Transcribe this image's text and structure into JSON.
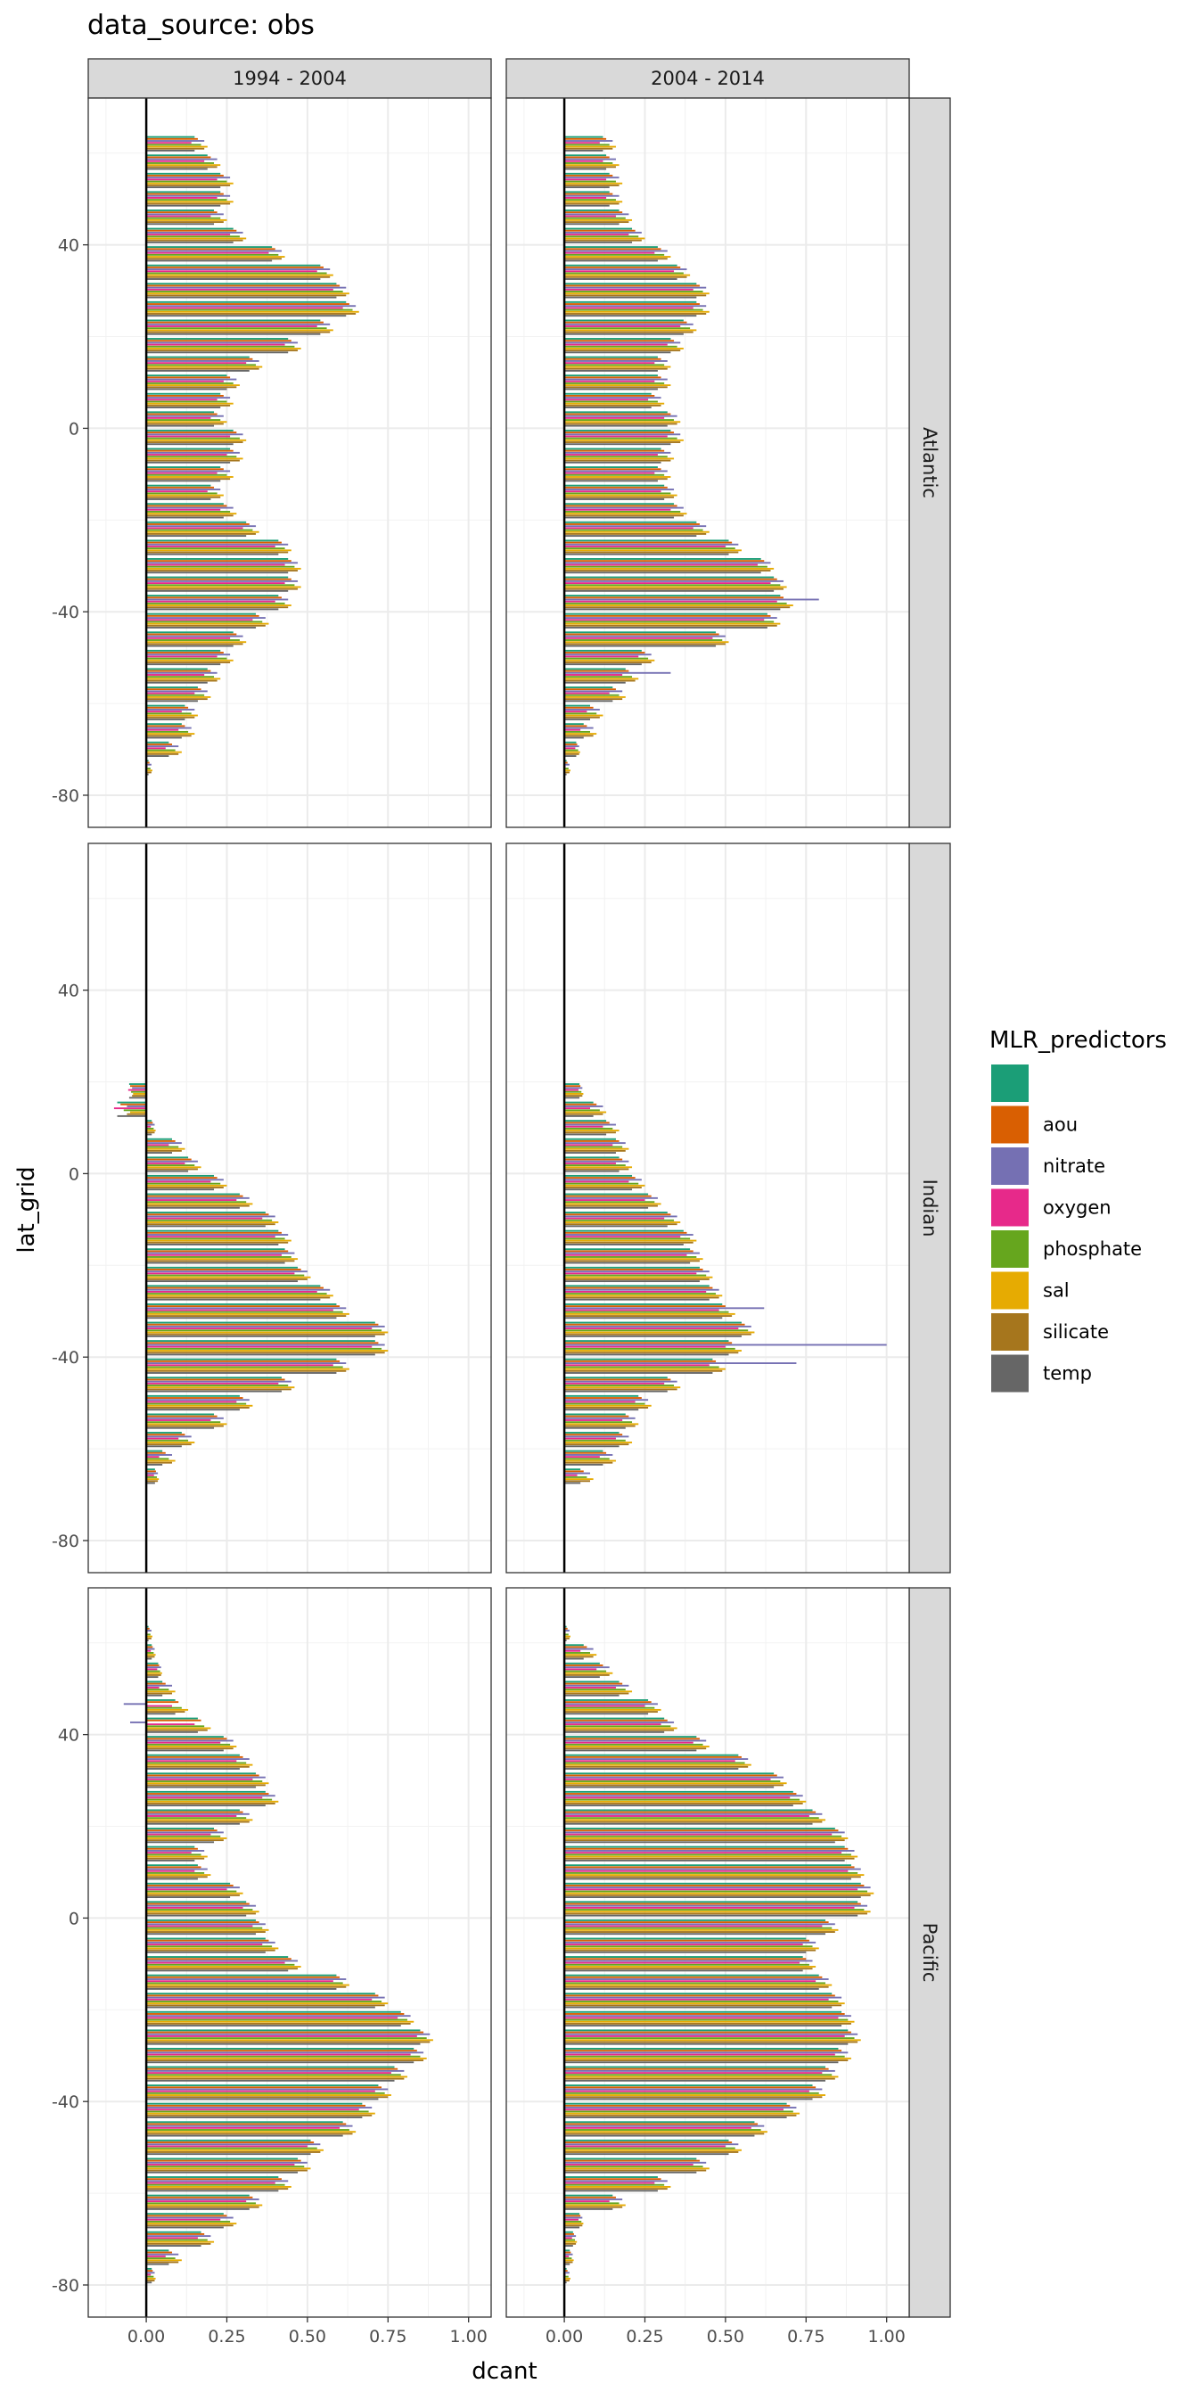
{
  "chart_data": {
    "type": "bar",
    "orientation": "horizontal",
    "title": "data_source: obs",
    "xlabel": "dcant",
    "ylabel": "lat_grid",
    "xlim": [
      -0.18,
      1.07
    ],
    "ylim": [
      -87,
      72
    ],
    "x_ticks": [
      0,
      0.25,
      0.5,
      0.75,
      1
    ],
    "x_tick_labels": [
      "0.00",
      "0.25",
      "0.50",
      "0.75",
      "1.00"
    ],
    "y_ticks": [
      -80,
      -40,
      0,
      40
    ],
    "y_tick_labels": [
      "-80",
      "-40",
      "0",
      "40"
    ],
    "grid": true,
    "legend_position": "right",
    "facet_cols": [
      "1994 - 2004",
      "2004 - 2014"
    ],
    "facet_rows": [
      "Atlantic",
      "Indian",
      "Pacific"
    ],
    "legend": {
      "title": "MLR_predictors",
      "items": [
        {
          "label": "",
          "color": "#1B9E77"
        },
        {
          "label": "aou",
          "color": "#D95F02"
        },
        {
          "label": "nitrate",
          "color": "#7570B3"
        },
        {
          "label": "oxygen",
          "color": "#E7298A"
        },
        {
          "label": "phosphate",
          "color": "#66A61E"
        },
        {
          "label": "sal",
          "color": "#E6AB02"
        },
        {
          "label": "silicate",
          "color": "#A6761D"
        },
        {
          "label": "temp",
          "color": "#666666"
        }
      ]
    },
    "latitudes": [
      62,
      58,
      54,
      50,
      46,
      42,
      38,
      34,
      30,
      26,
      22,
      18,
      14,
      10,
      6,
      2,
      -2,
      -6,
      -10,
      -14,
      -18,
      -22,
      -26,
      -30,
      -34,
      -38,
      -42,
      -46,
      -50,
      -54,
      -58,
      -62,
      -66,
      -70,
      -74,
      -78
    ],
    "panels": [
      {
        "row": "Atlantic",
        "col": "1994 - 2004",
        "profile": [
          0.16,
          0.2,
          0.24,
          0.24,
          0.22,
          0.28,
          0.4,
          0.55,
          0.6,
          0.63,
          0.55,
          0.45,
          0.33,
          0.26,
          0.24,
          0.22,
          0.28,
          0.27,
          0.24,
          0.21,
          0.25,
          0.32,
          0.42,
          0.45,
          0.45,
          0.42,
          0.35,
          0.28,
          0.24,
          0.2,
          0.17,
          0.13,
          0.12,
          0.08,
          0.01,
          null
        ]
      },
      {
        "row": "Atlantic",
        "col": "2004 - 2014",
        "profile": [
          0.13,
          0.14,
          0.15,
          0.15,
          0.18,
          0.22,
          0.3,
          0.36,
          0.42,
          0.42,
          0.38,
          0.34,
          0.3,
          0.3,
          0.28,
          0.33,
          0.34,
          0.31,
          0.3,
          0.32,
          0.35,
          0.42,
          0.52,
          0.62,
          0.66,
          0.68,
          0.64,
          0.48,
          0.25,
          0.2,
          0.16,
          0.09,
          0.07,
          0.04,
          0.01,
          null
        ]
      },
      {
        "row": "Indian",
        "col": "1994 - 2004",
        "profile": [
          null,
          null,
          null,
          null,
          null,
          null,
          null,
          null,
          null,
          null,
          null,
          -0.05,
          -0.08,
          0.02,
          0.09,
          0.14,
          0.22,
          0.3,
          0.38,
          0.42,
          0.44,
          0.48,
          0.55,
          0.6,
          0.72,
          0.72,
          0.6,
          0.43,
          0.3,
          0.22,
          0.12,
          0.06,
          0.03,
          null,
          null,
          null
        ]
      },
      {
        "row": "Indian",
        "col": "2004 - 2014",
        "profile": [
          null,
          null,
          null,
          null,
          null,
          null,
          null,
          null,
          null,
          null,
          null,
          0.05,
          0.1,
          0.14,
          0.17,
          0.18,
          0.22,
          0.27,
          0.33,
          0.38,
          0.4,
          0.43,
          0.46,
          0.5,
          0.56,
          0.52,
          0.47,
          0.33,
          0.24,
          0.2,
          0.18,
          0.13,
          0.06,
          null,
          null,
          null
        ]
      },
      {
        "row": "Pacific",
        "col": "1994 - 2004",
        "profile": [
          0.01,
          0.02,
          0.04,
          0.06,
          0.1,
          0.17,
          0.25,
          0.3,
          0.35,
          0.38,
          0.3,
          0.22,
          0.16,
          0.17,
          0.27,
          0.32,
          0.35,
          0.38,
          0.45,
          0.6,
          0.72,
          0.8,
          0.86,
          0.84,
          0.78,
          0.73,
          0.68,
          0.62,
          0.52,
          0.48,
          0.42,
          0.33,
          0.25,
          0.18,
          0.08,
          0.02
        ]
      },
      {
        "row": "Pacific",
        "col": "2004 - 2014",
        "profile": [
          0.01,
          0.07,
          0.12,
          0.18,
          0.27,
          0.32,
          0.42,
          0.55,
          0.66,
          0.72,
          0.78,
          0.85,
          0.88,
          0.9,
          0.93,
          0.92,
          0.82,
          0.76,
          0.75,
          0.8,
          0.84,
          0.87,
          0.89,
          0.86,
          0.82,
          0.78,
          0.7,
          0.6,
          0.52,
          0.42,
          0.3,
          0.16,
          0.05,
          0.03,
          0.02,
          0.01
        ]
      }
    ],
    "predictor_offsets": [
      -0.01,
      0.0,
      0.02,
      -0.02,
      0.01,
      0.03,
      0.02,
      -0.01
    ],
    "outliers": [
      {
        "panel": 1,
        "lat": -38,
        "series": 2,
        "value": 0.79
      },
      {
        "panel": 1,
        "lat": -42,
        "series": 2,
        "value": 0.66
      },
      {
        "panel": 1,
        "lat": -54,
        "series": 2,
        "value": 0.33
      },
      {
        "panel": 3,
        "lat": -38,
        "series": 2,
        "value": 1.0
      },
      {
        "panel": 3,
        "lat": -42,
        "series": 2,
        "value": 0.72
      },
      {
        "panel": 3,
        "lat": -30,
        "series": 2,
        "value": 0.62
      },
      {
        "panel": 4,
        "lat": 42,
        "series": 2,
        "value": -0.05
      },
      {
        "panel": 4,
        "lat": 46,
        "series": 2,
        "value": -0.07
      }
    ]
  }
}
